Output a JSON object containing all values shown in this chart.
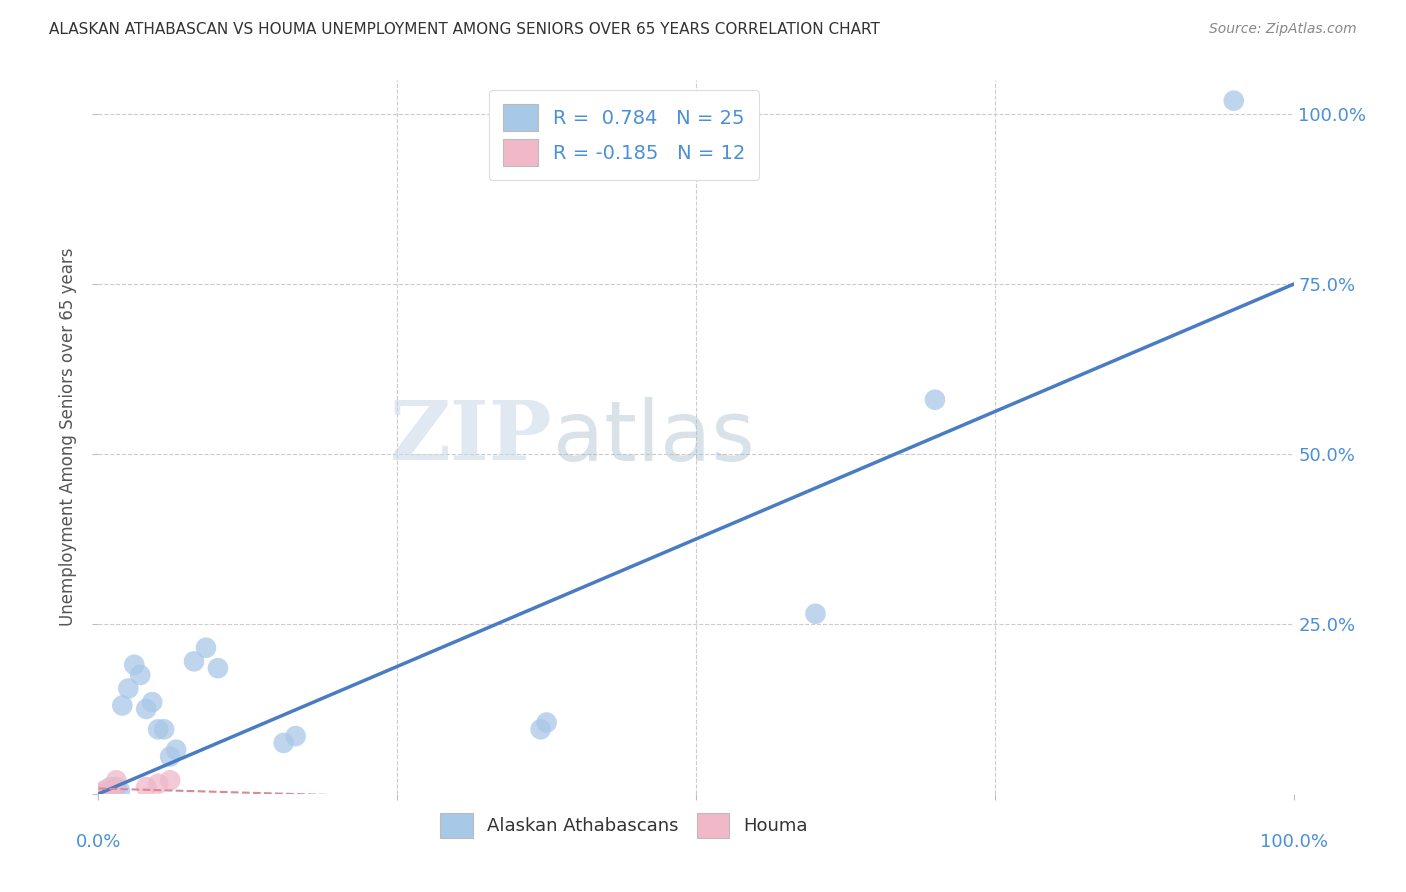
{
  "title": "ALASKAN ATHABASCAN VS HOUMA UNEMPLOYMENT AMONG SENIORS OVER 65 YEARS CORRELATION CHART",
  "source": "Source: ZipAtlas.com",
  "ylabel": "Unemployment Among Seniors over 65 years",
  "xlim": [
    0.0,
    1.0
  ],
  "ylim": [
    0.0,
    1.05
  ],
  "background_color": "#ffffff",
  "watermark_zip": "ZIP",
  "watermark_atlas": "atlas",
  "blue_color": "#a8c8e8",
  "pink_color": "#f0b8c8",
  "line_blue": "#4a7cc4",
  "line_pink": "#d88898",
  "blue_points": [
    [
      0.0,
      0.0
    ],
    [
      0.005,
      0.0
    ],
    [
      0.008,
      0.0
    ],
    [
      0.01,
      0.01
    ],
    [
      0.012,
      0.005
    ],
    [
      0.015,
      0.01
    ],
    [
      0.018,
      0.005
    ],
    [
      0.02,
      0.13
    ],
    [
      0.025,
      0.155
    ],
    [
      0.03,
      0.19
    ],
    [
      0.035,
      0.175
    ],
    [
      0.04,
      0.125
    ],
    [
      0.045,
      0.135
    ],
    [
      0.05,
      0.095
    ],
    [
      0.055,
      0.095
    ],
    [
      0.06,
      0.055
    ],
    [
      0.065,
      0.065
    ],
    [
      0.08,
      0.195
    ],
    [
      0.09,
      0.215
    ],
    [
      0.1,
      0.185
    ],
    [
      0.155,
      0.075
    ],
    [
      0.165,
      0.085
    ],
    [
      0.37,
      0.095
    ],
    [
      0.375,
      0.105
    ],
    [
      0.6,
      0.265
    ],
    [
      0.7,
      0.58
    ],
    [
      0.95,
      1.02
    ]
  ],
  "pink_points": [
    [
      0.0,
      0.0
    ],
    [
      0.002,
      0.0
    ],
    [
      0.004,
      0.0
    ],
    [
      0.005,
      0.005
    ],
    [
      0.006,
      0.0
    ],
    [
      0.008,
      0.0
    ],
    [
      0.01,
      0.005
    ],
    [
      0.012,
      0.005
    ],
    [
      0.015,
      0.02
    ],
    [
      0.04,
      0.01
    ],
    [
      0.05,
      0.015
    ],
    [
      0.06,
      0.02
    ]
  ],
  "blue_line_x": [
    0.0,
    1.0
  ],
  "blue_line_y": [
    0.0,
    0.75
  ],
  "pink_line_x": [
    0.0,
    0.2
  ],
  "pink_line_y": [
    0.008,
    -0.002
  ],
  "grid_color": "#cccccc",
  "tick_color": "#4a90d9",
  "axis_label_color": "#555555",
  "title_color": "#333333",
  "right_ytick_labels": [
    "25.0%",
    "50.0%",
    "75.0%",
    "100.0%"
  ],
  "right_ytick_vals": [
    0.25,
    0.5,
    0.75,
    1.0
  ]
}
